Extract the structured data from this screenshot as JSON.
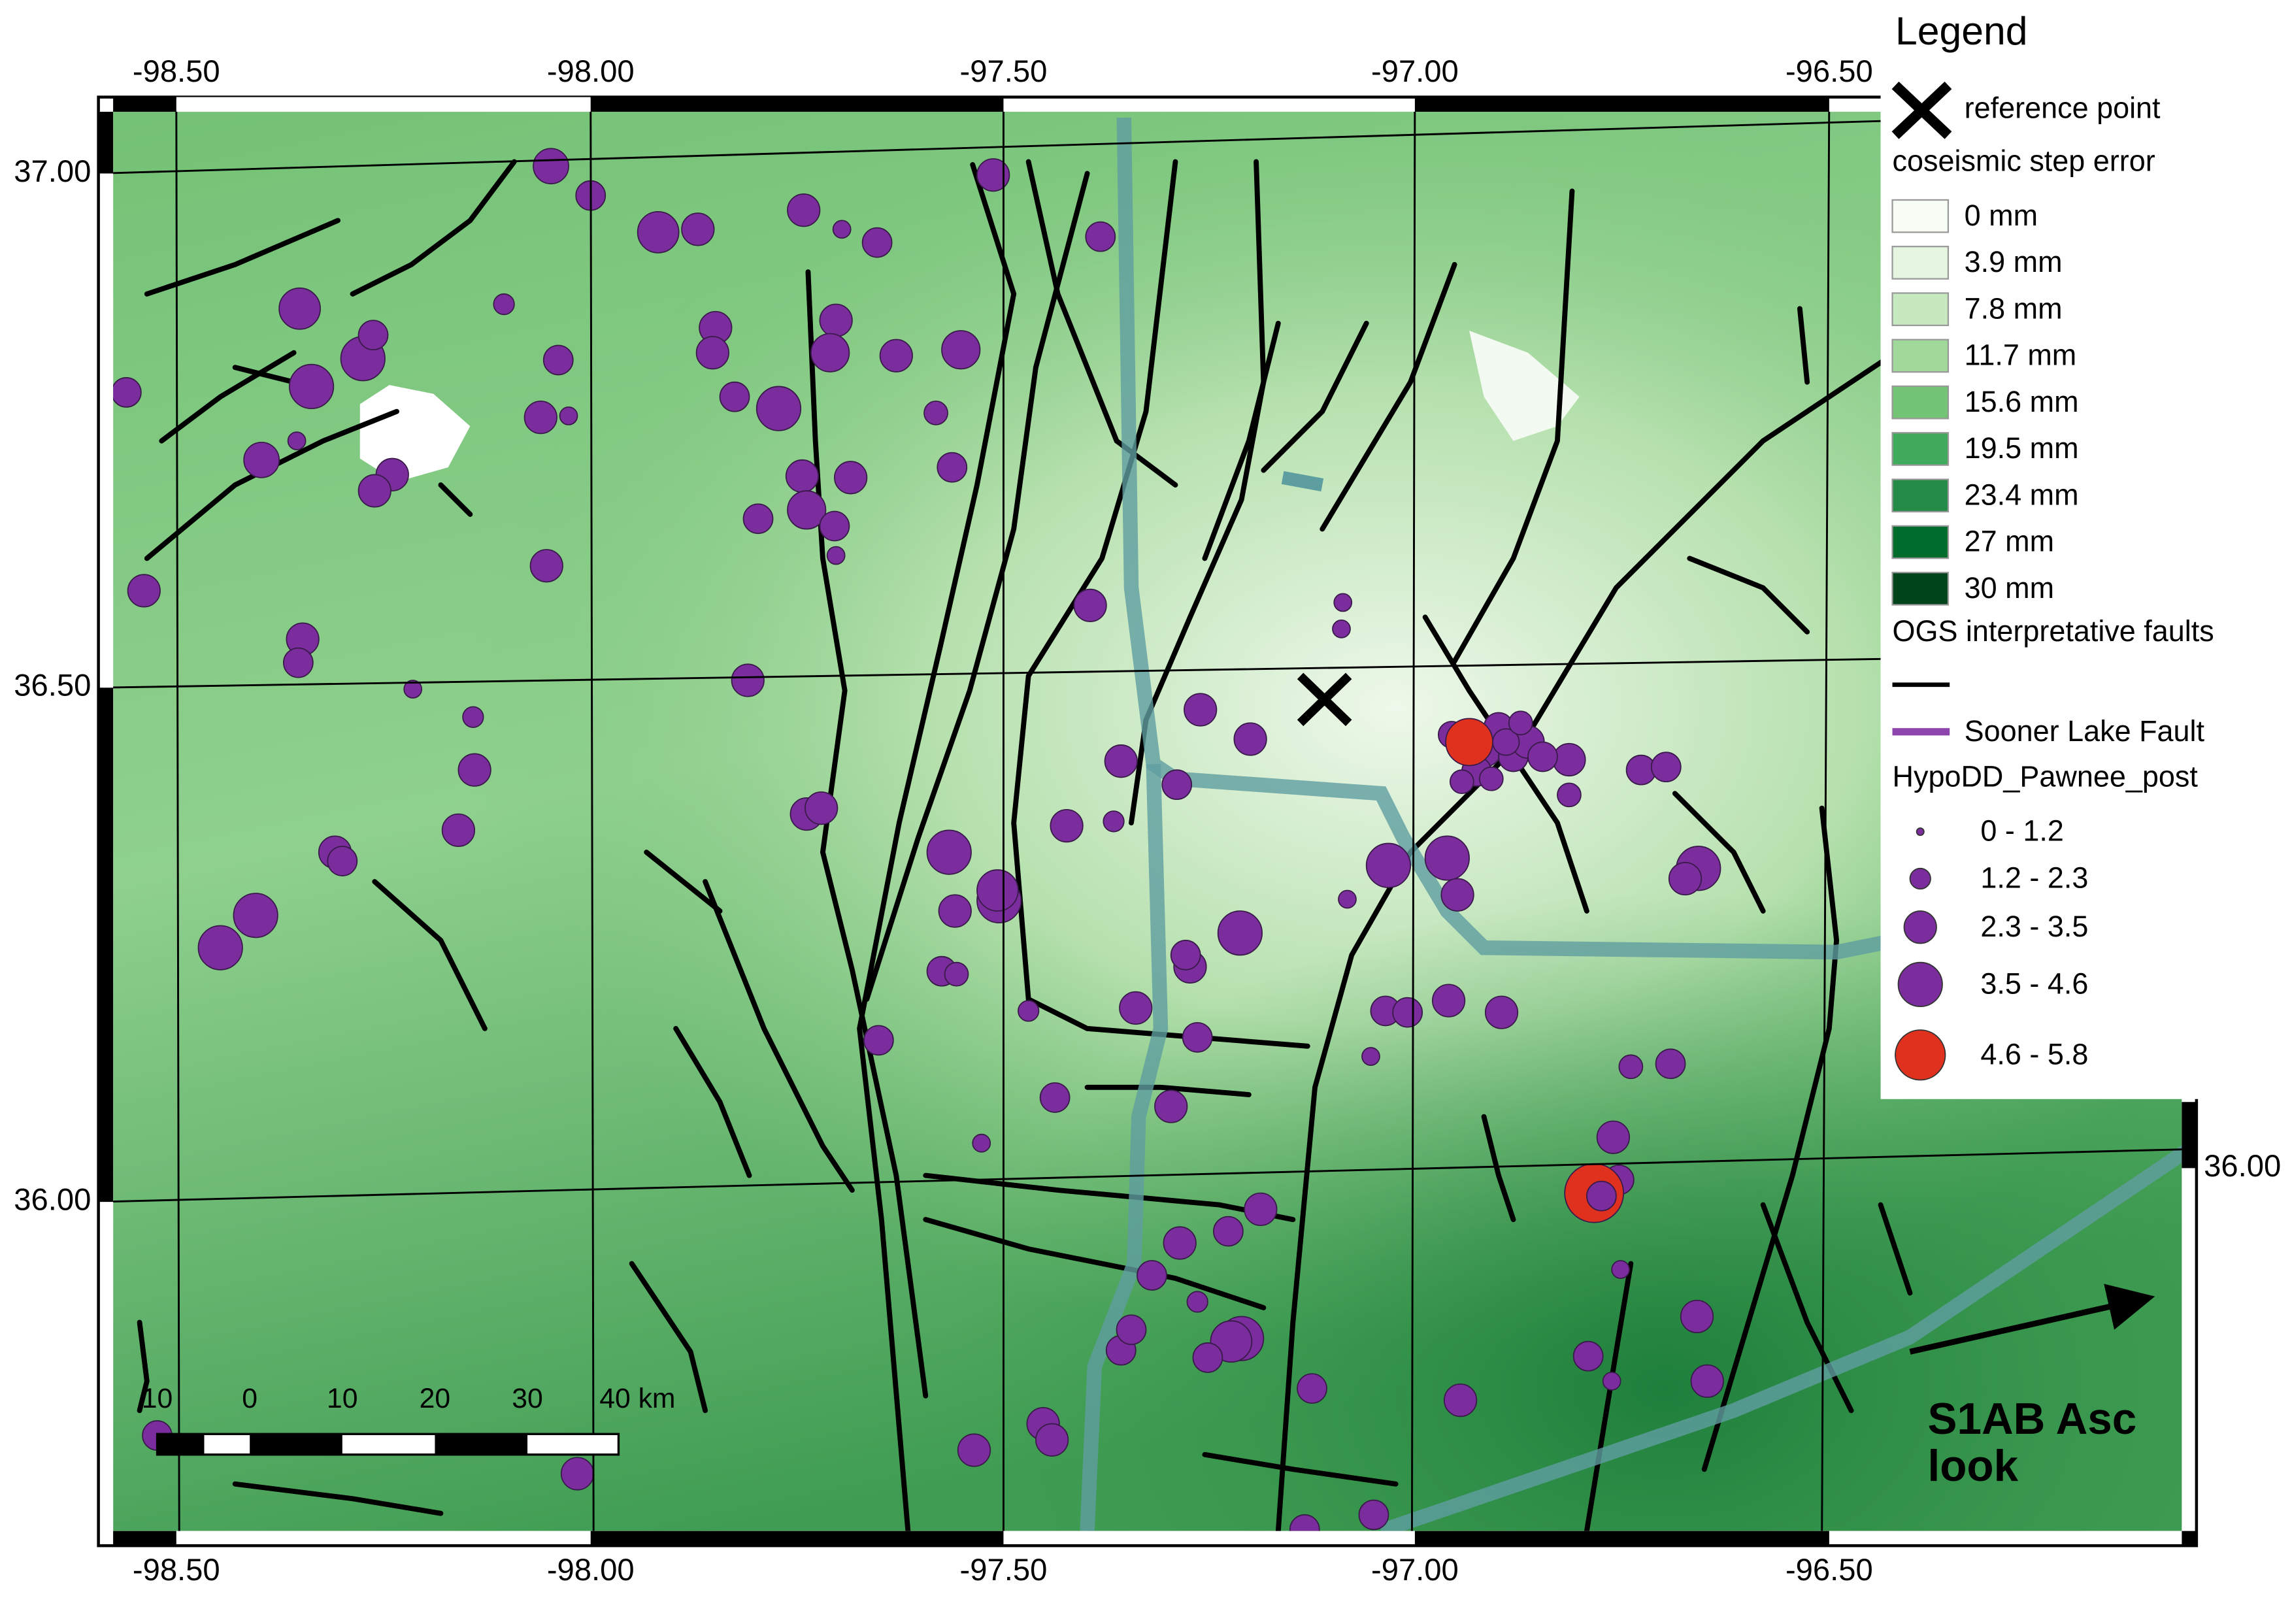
{
  "axes": {
    "top": [
      "-98.50",
      "-98.00",
      "-97.50",
      "-97.00",
      "-96.50"
    ],
    "bottom": [
      "-98.50",
      "-98.00",
      "-97.50",
      "-97.00",
      "-96.50"
    ],
    "left": [
      "37.00",
      "36.50",
      "36.00"
    ],
    "right": [
      "36.00"
    ]
  },
  "legend": {
    "title": "Legend",
    "reference": "reference point",
    "error_title": "coseismic step error",
    "error_classes": [
      {
        "label": "0 mm",
        "color": "#f7fcf5"
      },
      {
        "label": "3.9 mm",
        "color": "#e5f5e0"
      },
      {
        "label": "7.8 mm",
        "color": "#c7e9c0"
      },
      {
        "label": "11.7 mm",
        "color": "#a1d99b"
      },
      {
        "label": "15.6 mm",
        "color": "#74c476"
      },
      {
        "label": "19.5 mm",
        "color": "#41ab5d"
      },
      {
        "label": "23.4 mm",
        "color": "#238b45"
      },
      {
        "label": "27 mm",
        "color": "#006d2c"
      },
      {
        "label": "30 mm",
        "color": "#00441b"
      }
    ],
    "faults": "OGS interpretative faults",
    "sooner": "Sooner Lake Fault",
    "hypo_title": "HypoDD_Pawnee_post",
    "magnitudes": [
      {
        "label": "0 - 1.2",
        "color": "#7b2d9e"
      },
      {
        "label": "1.2 - 2.3",
        "color": "#7b2d9e"
      },
      {
        "label": "2.3 - 3.5",
        "color": "#7b2d9e"
      },
      {
        "label": "3.5 - 4.6",
        "color": "#7b2d9e"
      },
      {
        "label": "4.6 - 5.8",
        "color": "#e0301e"
      }
    ]
  },
  "scale_bar": [
    "10",
    "0",
    "10",
    "20",
    "30",
    "40 km"
  ],
  "annotation": [
    "S1AB Asc",
    "look"
  ]
}
